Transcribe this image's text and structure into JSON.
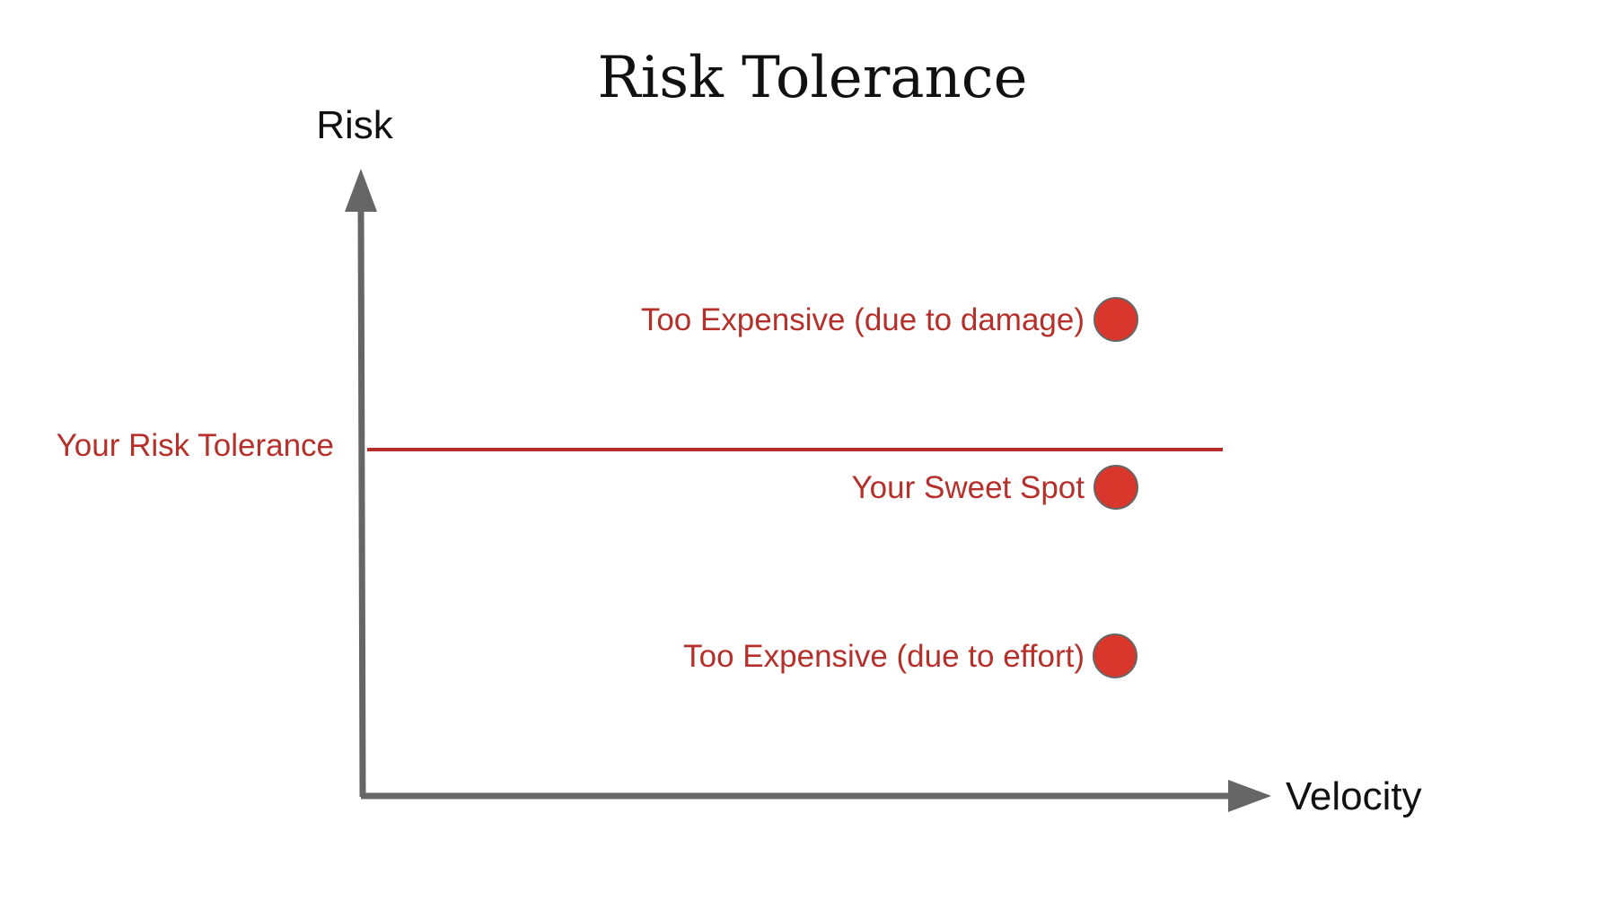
{
  "title": "Risk Tolerance",
  "axes": {
    "y_label": "Risk",
    "x_label": "Velocity",
    "axis_color": "#666666"
  },
  "threshold": {
    "label": "Your Risk Tolerance",
    "color": "#b5302a"
  },
  "points": [
    {
      "label": "Too Expensive (due to damage)",
      "color": "#d9372b"
    },
    {
      "label": "Your Sweet Spot",
      "color": "#d9372b"
    },
    {
      "label": "Too Expensive (due to effort)",
      "color": "#d9372b"
    }
  ],
  "label_color": "#b5302a"
}
